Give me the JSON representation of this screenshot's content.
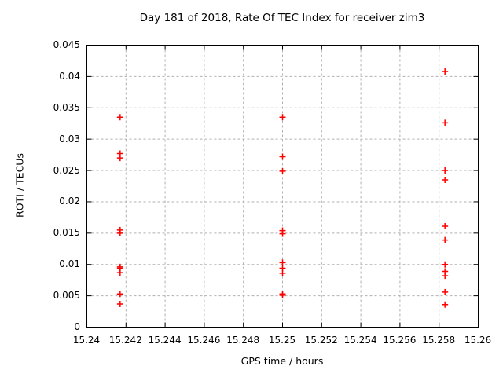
{
  "chart_data": {
    "type": "scatter",
    "title": "Day 181 of 2018, Rate Of TEC Index for receiver zim3",
    "xlabel": "GPS time / hours",
    "ylabel": "ROTI / TECUs",
    "xlim": [
      15.24,
      15.26
    ],
    "ylim": [
      0,
      0.045
    ],
    "xtick_values": [
      15.24,
      15.242,
      15.244,
      15.246,
      15.248,
      15.25,
      15.252,
      15.254,
      15.256,
      15.258,
      15.26
    ],
    "xtick_labels": [
      "15.24",
      "15.242",
      "15.244",
      "15.246",
      "15.248",
      "15.25",
      "15.252",
      "15.254",
      "15.256",
      "15.258",
      "15.26"
    ],
    "ytick_values": [
      0,
      0.005,
      0.01,
      0.015,
      0.02,
      0.025,
      0.03,
      0.035,
      0.04,
      0.045
    ],
    "ytick_labels": [
      "0",
      "0.005",
      "0.01",
      "0.015",
      "0.02",
      "0.025",
      "0.03",
      "0.035",
      "0.04",
      "0.045"
    ],
    "grid": "dashed",
    "legend": "none",
    "marker": "plus",
    "marker_color": "#ff0000",
    "grid_color": "#b0b0b0",
    "axis_color": "#000000",
    "series": [
      {
        "name": "ROTI",
        "points": [
          [
            15.2417,
            0.0335
          ],
          [
            15.2417,
            0.0277
          ],
          [
            15.2417,
            0.027
          ],
          [
            15.2417,
            0.0155
          ],
          [
            15.2417,
            0.015
          ],
          [
            15.2417,
            0.0096
          ],
          [
            15.2417,
            0.0094
          ],
          [
            15.2417,
            0.0087
          ],
          [
            15.2417,
            0.0053
          ],
          [
            15.2417,
            0.0037
          ],
          [
            15.25,
            0.0335
          ],
          [
            15.25,
            0.0272
          ],
          [
            15.25,
            0.0249
          ],
          [
            15.25,
            0.0154
          ],
          [
            15.25,
            0.0149
          ],
          [
            15.25,
            0.0103
          ],
          [
            15.25,
            0.0094
          ],
          [
            15.25,
            0.0086
          ],
          [
            15.25,
            0.0053
          ],
          [
            15.25,
            0.0051
          ],
          [
            15.2583,
            0.0408
          ],
          [
            15.2583,
            0.0326
          ],
          [
            15.2583,
            0.025
          ],
          [
            15.2583,
            0.0235
          ],
          [
            15.2583,
            0.0161
          ],
          [
            15.2583,
            0.0139
          ],
          [
            15.2583,
            0.01
          ],
          [
            15.2583,
            0.0089
          ],
          [
            15.2583,
            0.0082
          ],
          [
            15.2583,
            0.0056
          ],
          [
            15.2583,
            0.0036
          ]
        ]
      }
    ]
  }
}
